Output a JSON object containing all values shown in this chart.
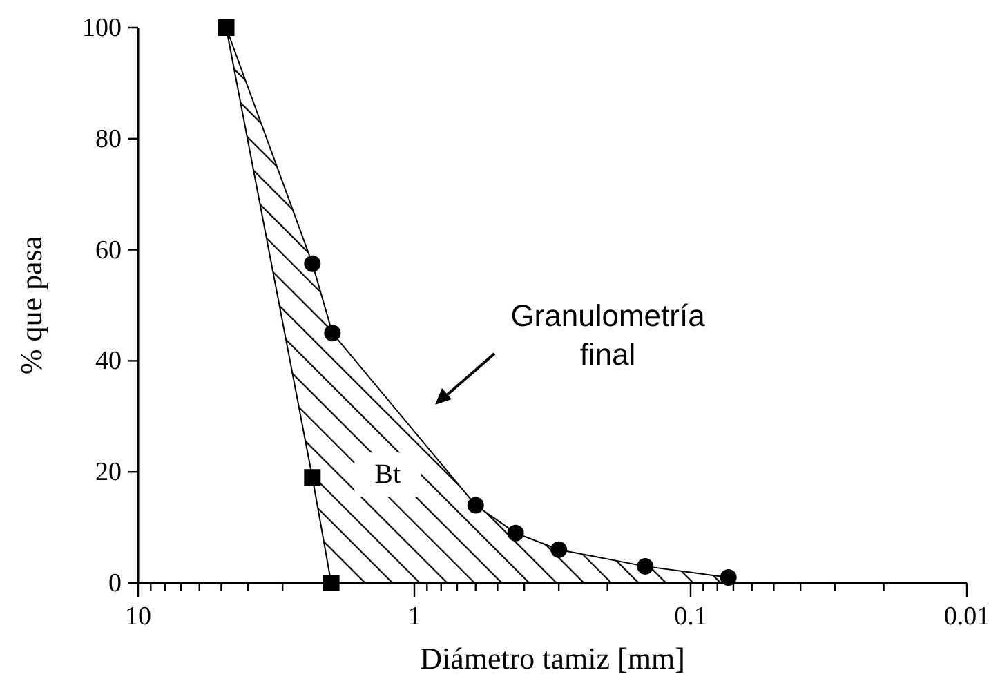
{
  "chart_data": {
    "type": "line",
    "xlabel": "Diámetro tamiz [mm]",
    "ylabel": "% que pasa",
    "log": "x",
    "xlim": [
      10,
      0.01
    ],
    "ylim": [
      0,
      100
    ],
    "xticks": [
      10,
      {
        "value": 9,
        "label": null
      },
      {
        "value": 8,
        "label": null
      },
      {
        "value": 7,
        "label": null
      },
      {
        "value": 6,
        "label": null
      },
      {
        "value": 5,
        "label": null
      },
      {
        "value": 4,
        "label": null
      },
      {
        "value": 3,
        "label": null
      },
      {
        "value": 2,
        "label": null
      },
      1,
      {
        "value": 0.9,
        "label": null
      },
      {
        "value": 0.8,
        "label": null
      },
      {
        "value": 0.7,
        "label": null
      },
      {
        "value": 0.6,
        "label": null
      },
      {
        "value": 0.5,
        "label": null
      },
      {
        "value": 0.4,
        "label": null
      },
      {
        "value": 0.3,
        "label": null
      },
      {
        "value": 0.2,
        "label": null
      },
      0.1,
      {
        "value": 0.09,
        "label": null
      },
      {
        "value": 0.08,
        "label": null
      },
      {
        "value": 0.07,
        "label": null
      },
      {
        "value": 0.06,
        "label": null
      },
      {
        "value": 0.05,
        "label": null
      },
      {
        "value": 0.04,
        "label": null
      },
      {
        "value": 0.03,
        "label": null
      },
      {
        "value": 0.02,
        "label": null
      },
      0.01
    ],
    "yticks": [
      0,
      20,
      40,
      60,
      80,
      100
    ],
    "grid": false,
    "series": [
      {
        "color": "#000000",
        "marker": "square",
        "x": [
          4.8,
          2.34,
          2.0
        ],
        "values": [
          100,
          19,
          0
        ]
      },
      {
        "color": "#000000",
        "marker": "circle",
        "x": [
          4.8,
          2.34,
          1.98,
          0.6,
          0.43,
          0.3,
          0.146,
          0.073
        ],
        "values": [
          100,
          57.5,
          45,
          14,
          9,
          6,
          3,
          1
        ],
        "upper": [
          100,
          57.5,
          45,
          14,
          9,
          6,
          3,
          1
        ],
        "lower": [
          100,
          19,
          0,
          0,
          0,
          0,
          0,
          0
        ]
      }
    ],
    "annotations": [
      "Granulometría final",
      "Bt"
    ]
  }
}
